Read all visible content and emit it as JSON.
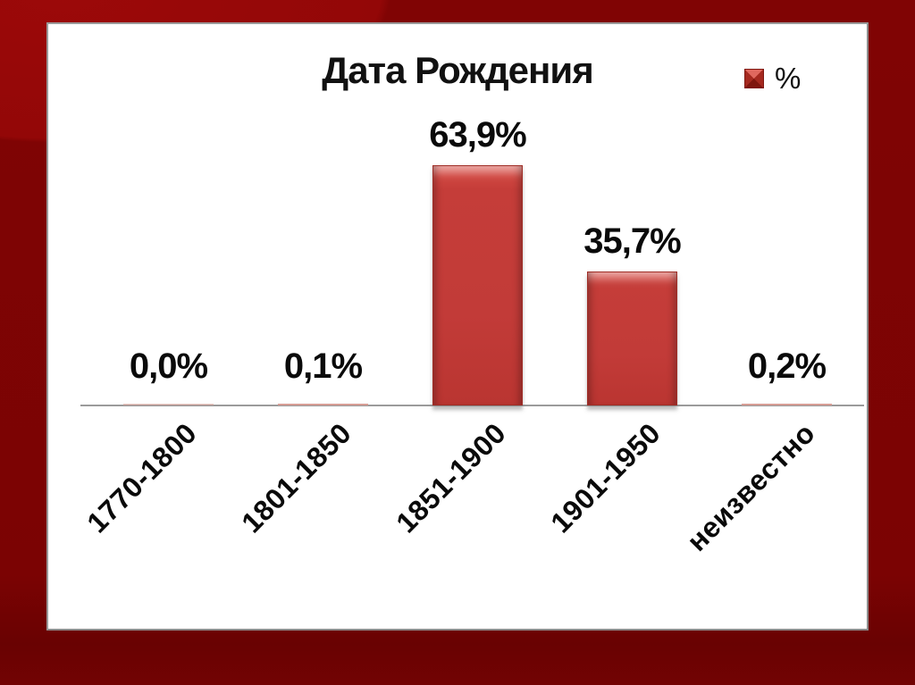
{
  "chart_data": {
    "type": "bar",
    "title": "Дата Рождения",
    "series_name": "%",
    "categories": [
      "1770-1800",
      "1801-1850",
      "1851-1900",
      "1901-1950",
      "неизвестно"
    ],
    "values": [
      0.0,
      0.1,
      63.9,
      35.7,
      0.2
    ],
    "value_labels": [
      "0,0%",
      "0,1%",
      "63,9%",
      "35,7%",
      "0,2%"
    ],
    "xlabel": "",
    "ylabel": "",
    "ylim": [
      0,
      70
    ],
    "grid": false,
    "legend_position": "top-right",
    "category_label_rotation_deg": -45
  },
  "colors": {
    "slide_background": "#7b0303",
    "slide_background_light": "#9c0909",
    "panel_background": "#ffffff",
    "panel_border": "#9a9a9a",
    "bar_fill": "#c23b38",
    "bar_highlight": "#dd6059",
    "bar_shadow_edge": "#a02d26",
    "tiny_bar_fill": "#d59c94",
    "axis_line": "#9b9b9b",
    "text": "#0a0a0a"
  }
}
